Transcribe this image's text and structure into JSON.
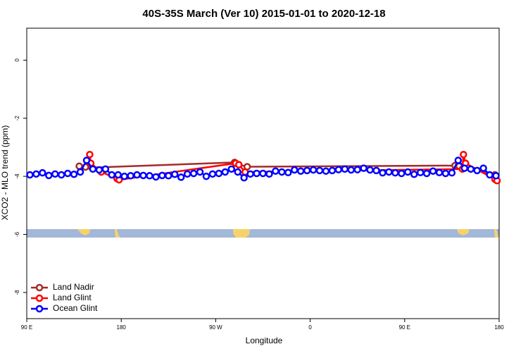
{
  "chart_data": {
    "type": "line",
    "title": "40S-35S March (Ver 10)   2015-01-01 to 2020-12-18",
    "x_label": "Longitude",
    "y_label": "XCO2 - MLO trend (ppm)",
    "xlim": [
      90,
      540
    ],
    "xticks": [
      {
        "value": 90,
        "label": "90 E"
      },
      {
        "value": 180,
        "label": "180"
      },
      {
        "value": 270,
        "label": "90 W"
      },
      {
        "value": 360,
        "label": "0"
      },
      {
        "value": 450,
        "label": "90 E"
      },
      {
        "value": 540,
        "label": "180"
      }
    ],
    "ylim": [
      -8.9,
      1.1
    ],
    "yticks": [
      0,
      -2,
      -4,
      -6,
      -8
    ],
    "legend": "bottom-left",
    "series": [
      {
        "name": "Land Nadir",
        "color": "#a52a2a",
        "x": [
          140,
          146,
          152,
          288,
          292,
          300,
          498,
          502,
          536
        ],
        "values": [
          -3.65,
          -3.68,
          -3.7,
          -3.52,
          -3.6,
          -3.67,
          -3.63,
          -3.65,
          -3.95
        ]
      },
      {
        "name": "Land Glint",
        "color": "#ff0000",
        "x": [
          150,
          151,
          161,
          176,
          178,
          289,
          292,
          298,
          505,
          506,
          508,
          536,
          538
        ],
        "values": [
          -3.25,
          -3.55,
          -3.85,
          -4.08,
          -4.12,
          -3.55,
          -3.6,
          -3.85,
          -3.75,
          -3.25,
          -3.55,
          -4.1,
          -4.15
        ]
      },
      {
        "name": "Ocean Glint",
        "color": "#0000ff",
        "x": [
          93,
          99,
          105,
          111,
          117,
          123,
          129,
          135,
          141,
          147,
          153,
          159,
          165,
          171,
          177,
          183,
          189,
          195,
          201,
          207,
          213,
          219,
          225,
          231,
          237,
          243,
          249,
          255,
          261,
          267,
          273,
          279,
          285,
          291,
          297,
          303,
          309,
          315,
          321,
          327,
          333,
          339,
          345,
          351,
          357,
          363,
          369,
          375,
          381,
          387,
          393,
          399,
          405,
          411,
          417,
          423,
          429,
          435,
          441,
          447,
          453,
          459,
          465,
          471,
          477,
          483,
          489,
          495,
          501,
          507,
          513,
          519,
          525,
          531,
          537
        ],
        "values": [
          -3.95,
          -3.92,
          -3.88,
          -3.97,
          -3.92,
          -3.95,
          -3.9,
          -3.93,
          -3.85,
          -3.45,
          -3.75,
          -3.78,
          -3.75,
          -3.95,
          -3.95,
          -4.0,
          -3.98,
          -3.95,
          -3.97,
          -3.98,
          -4.02,
          -3.97,
          -3.98,
          -3.93,
          -4.03,
          -3.92,
          -3.9,
          -3.85,
          -4.0,
          -3.92,
          -3.9,
          -3.85,
          -3.75,
          -3.85,
          -4.05,
          -3.92,
          -3.9,
          -3.9,
          -3.92,
          -3.82,
          -3.85,
          -3.87,
          -3.78,
          -3.82,
          -3.8,
          -3.78,
          -3.8,
          -3.82,
          -3.8,
          -3.77,
          -3.75,
          -3.78,
          -3.77,
          -3.72,
          -3.78,
          -3.8,
          -3.88,
          -3.85,
          -3.88,
          -3.9,
          -3.85,
          -3.93,
          -3.87,
          -3.9,
          -3.82,
          -3.87,
          -3.9,
          -3.88,
          -3.45,
          -3.72,
          -3.75,
          -3.8,
          -3.72,
          -3.95,
          -3.98
        ]
      }
    ]
  }
}
